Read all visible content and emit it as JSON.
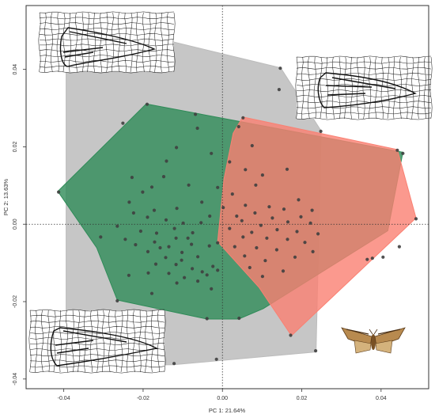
{
  "chart_data": {
    "type": "scatter",
    "title": "",
    "xlabel": "PC 1: 21.64%",
    "ylabel": "PC 2: 13.63%",
    "xlim": [
      -0.0495,
      0.052
    ],
    "ylim": [
      -0.0425,
      0.0565
    ],
    "xticks": [
      {
        "value": -0.04,
        "label": "-0.04"
      },
      {
        "value": -0.02,
        "label": "-0.02"
      },
      {
        "value": 0.0,
        "label": "0.00"
      },
      {
        "value": 0.02,
        "label": "0.02"
      },
      {
        "value": 0.04,
        "label": "0.04"
      }
    ],
    "yticks": [
      {
        "value": -0.04,
        "label": "-0.04"
      },
      {
        "value": -0.02,
        "label": "-0.02"
      },
      {
        "value": 0.0,
        "label": "0.00"
      },
      {
        "value": 0.02,
        "label": "0.02"
      },
      {
        "value": 0.04,
        "label": "0.04"
      }
    ],
    "reference_lines": {
      "x": 0,
      "y": 0,
      "style": "dotted"
    },
    "grid": false,
    "legend": "none",
    "groups": [
      {
        "color": "#bcbcbc",
        "hull": [
          [
            -0.0394,
            0.0538
          ],
          [
            0.0147,
            0.0404
          ],
          [
            0.0249,
            0.0241
          ],
          [
            0.0236,
            -0.033
          ],
          [
            -0.0124,
            -0.0363
          ],
          [
            -0.0394,
            -0.0365
          ]
        ],
        "points": [
          [
            -0.0393,
            0.0534
          ],
          [
            0.0146,
            0.0403
          ],
          [
            0.0143,
            0.0348
          ],
          [
            0.0248,
            0.024
          ],
          [
            0.0235,
            -0.0327
          ],
          [
            -0.0122,
            -0.036
          ],
          [
            -0.0388,
            -0.0368
          ],
          [
            -0.0278,
            -0.0268
          ],
          [
            -0.0015,
            -0.0349
          ]
        ]
      },
      {
        "color": "#2e8b57",
        "hull": [
          [
            -0.0192,
            0.0311
          ],
          [
            0.0455,
            0.0186
          ],
          [
            0.0417,
            -0.0017
          ],
          [
            0.0103,
            -0.0218
          ],
          [
            0.0041,
            -0.0245
          ],
          [
            -0.0039,
            -0.0245
          ],
          [
            -0.0265,
            -0.0196
          ],
          [
            -0.0317,
            -0.0061
          ],
          [
            -0.0415,
            0.0085
          ]
        ],
        "points": [
          [
            -0.0413,
            0.0083
          ],
          [
            -0.019,
            0.031
          ],
          [
            -0.0251,
            0.0261
          ],
          [
            -0.0068,
            0.0284
          ],
          [
            -0.0063,
            0.0248
          ],
          [
            0.0041,
            0.0252
          ],
          [
            0.0455,
            0.0183
          ],
          [
            -0.0116,
            0.0198
          ],
          [
            0.0075,
            0.0203
          ],
          [
            -0.0028,
            0.0183
          ],
          [
            -0.0141,
            0.0163
          ],
          [
            0.0018,
            0.0161
          ],
          [
            -0.0148,
            0.0123
          ],
          [
            0.0058,
            0.0141
          ],
          [
            0.0101,
            0.0127
          ],
          [
            -0.0228,
            0.0121
          ],
          [
            -0.0085,
            0.0101
          ],
          [
            -0.0178,
            0.0096
          ],
          [
            -0.0012,
            0.0095
          ],
          [
            -0.0201,
            0.0083
          ],
          [
            -0.0235,
            0.0057
          ],
          [
            -0.0052,
            0.0057
          ],
          [
            -0.0115,
            0.0041
          ],
          [
            -0.0172,
            0.0036
          ],
          [
            -0.0224,
            0.0029
          ],
          [
            -0.0032,
            0.0021
          ],
          [
            -0.0189,
            0.0018
          ],
          [
            -0.0142,
            0.0011
          ],
          [
            -0.0099,
            0.0003
          ],
          [
            -0.0054,
            0.0004
          ],
          [
            -0.0265,
            -0.0005
          ],
          [
            -0.0121,
            -0.0011
          ],
          [
            -0.0206,
            -0.0018
          ],
          [
            -0.0166,
            -0.0023
          ],
          [
            -0.0075,
            -0.0022
          ],
          [
            -0.0307,
            -0.0033
          ],
          [
            -0.0245,
            -0.0039
          ],
          [
            -0.0117,
            -0.0036
          ],
          [
            -0.0171,
            -0.0046
          ],
          [
            -0.0219,
            -0.0053
          ],
          [
            -0.0135,
            -0.0058
          ],
          [
            -0.0078,
            -0.0052
          ],
          [
            -0.0033,
            -0.0056
          ],
          [
            -0.0188,
            -0.0071
          ],
          [
            -0.0102,
            -0.0073
          ],
          [
            -0.0062,
            -0.0084
          ],
          [
            -0.0143,
            -0.0086
          ],
          [
            -0.0168,
            -0.0103
          ],
          [
            -0.0117,
            -0.0104
          ],
          [
            -0.0076,
            -0.0115
          ],
          [
            -0.0024,
            -0.0109
          ],
          [
            -0.0187,
            -0.0126
          ],
          [
            -0.0135,
            -0.0127
          ],
          [
            -0.0039,
            -0.0131
          ],
          [
            -0.0096,
            -0.0138
          ],
          [
            -0.0062,
            -0.0147
          ],
          [
            -0.0115,
            -0.0152
          ],
          [
            -0.0236,
            -0.0132
          ],
          [
            -0.0028,
            -0.0167
          ],
          [
            -0.0178,
            -0.0179
          ],
          [
            -0.0265,
            -0.0198
          ],
          [
            0.0042,
            -0.0243
          ],
          [
            -0.0039,
            -0.0244
          ],
          [
            -0.0103,
            -0.0093
          ],
          [
            -0.0051,
            -0.0123
          ],
          [
            -0.0012,
            -0.0119
          ],
          [
            -0.0157,
            -0.0061
          ],
          [
            -0.0087,
            -0.0036
          ]
        ]
      },
      {
        "color": "#fa8072",
        "hull": [
          [
            0.0051,
            0.0277
          ],
          [
            0.0441,
            0.0193
          ],
          [
            0.0488,
            0.0016
          ],
          [
            0.0174,
            -0.0288
          ],
          [
            0.0092,
            -0.0163
          ],
          [
            -0.0012,
            -0.0045
          ],
          [
            0.0004,
            0.0117
          ],
          [
            0.0027,
            0.0235
          ]
        ],
        "points": [
          [
            0.0052,
            0.0275
          ],
          [
            0.0441,
            0.0191
          ],
          [
            0.0488,
            0.0014
          ],
          [
            0.0172,
            -0.0287
          ],
          [
            -0.0012,
            -0.0048
          ],
          [
            0.0163,
            0.0142
          ],
          [
            0.0084,
            0.0101
          ],
          [
            0.0025,
            0.0078
          ],
          [
            0.0192,
            0.0063
          ],
          [
            0.0058,
            0.0049
          ],
          [
            0.0118,
            0.0045
          ],
          [
            0.0002,
            0.0043
          ],
          [
            0.0155,
            0.0039
          ],
          [
            0.0226,
            0.0036
          ],
          [
            0.0082,
            0.0029
          ],
          [
            0.0036,
            0.0021
          ],
          [
            0.0198,
            0.0019
          ],
          [
            0.0126,
            0.0016
          ],
          [
            0.0049,
            0.0009
          ],
          [
            0.0165,
            0.0006
          ],
          [
            0.0222,
            0.0003
          ],
          [
            0.0097,
            -0.0003
          ],
          [
            0.0018,
            -0.0011
          ],
          [
            0.0138,
            -0.0014
          ],
          [
            0.0074,
            -0.0021
          ],
          [
            0.0188,
            -0.0019
          ],
          [
            0.0241,
            -0.0025
          ],
          [
            0.0052,
            -0.0033
          ],
          [
            0.0112,
            -0.0036
          ],
          [
            0.0164,
            -0.0039
          ],
          [
            0.0208,
            -0.0047
          ],
          [
            0.0031,
            -0.0058
          ],
          [
            0.0086,
            -0.0061
          ],
          [
            0.0137,
            -0.0066
          ],
          [
            0.0228,
            -0.0071
          ],
          [
            0.0056,
            -0.0082
          ],
          [
            0.0183,
            -0.0085
          ],
          [
            0.0108,
            -0.0094
          ],
          [
            0.0069,
            -0.0112
          ],
          [
            0.0153,
            -0.0121
          ],
          [
            0.0101,
            -0.0135
          ],
          [
            0.0446,
            -0.0058
          ],
          [
            0.0405,
            -0.0085
          ],
          [
            0.0365,
            -0.0091
          ],
          [
            0.0378,
            -0.0088
          ]
        ]
      }
    ]
  }
}
